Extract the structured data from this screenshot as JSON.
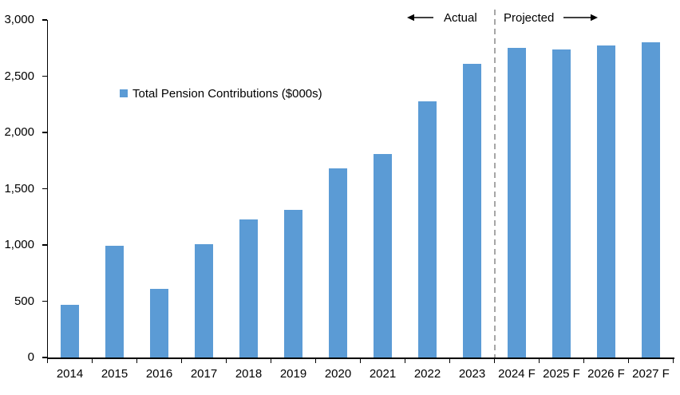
{
  "chart_data": {
    "type": "bar",
    "title": "",
    "legend": "Total Pension Contributions ($000s)",
    "legend_position": "inside-upper-left",
    "grid": false,
    "categories": [
      "2014",
      "2015",
      "2016",
      "2017",
      "2018",
      "2019",
      "2020",
      "2021",
      "2022",
      "2023",
      "2024 F",
      "2025 F",
      "2026 F",
      "2027 F"
    ],
    "values": [
      470,
      990,
      610,
      1010,
      1230,
      1310,
      1680,
      1810,
      2280,
      2610,
      2750,
      2740,
      2770,
      2800
    ],
    "ylim": [
      0,
      3000
    ],
    "ytick_step": 500,
    "ytick_labels": [
      "0",
      "500",
      "1,000",
      "1,500",
      "2,000",
      "2,500",
      "3,000"
    ],
    "bar_color": "#5B9BD5",
    "axis_color": "#000000",
    "divider_color": "#A6A6A6",
    "annotations": {
      "actual": "Actual",
      "projected": "Projected",
      "divider_between": [
        "2023",
        "2024 F"
      ]
    }
  }
}
